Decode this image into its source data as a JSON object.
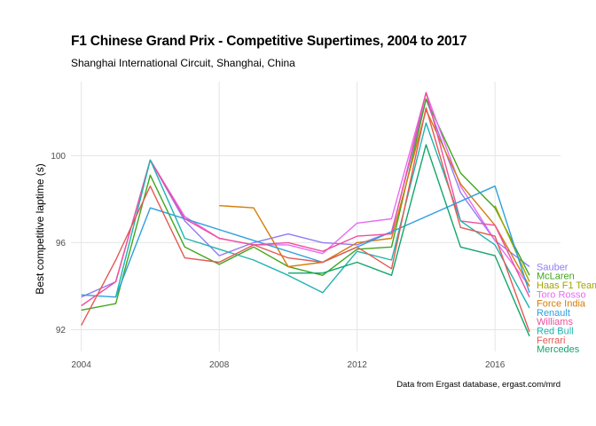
{
  "chart_data": {
    "type": "line",
    "title": "F1 Chinese Grand Prix - Competitive Supertimes, 2004 to 2017",
    "subtitle": "Shanghai International Circuit, Shanghai, China",
    "caption": "Data from Ergast database, ergast.com/mrd",
    "xlabel": "",
    "ylabel": "Best competitive laptime (s)",
    "xlim": [
      2003.7,
      2017.9
    ],
    "ylim": [
      91.0,
      103.4
    ],
    "x_ticks": [
      2004,
      2008,
      2012,
      2016
    ],
    "y_ticks": [
      92,
      96,
      100
    ],
    "grid": true,
    "legend": "direct labels at right end of lines",
    "series": [
      {
        "name": "Sauber",
        "color": "#8f7cf4",
        "x": [
          2004,
          2005,
          2006,
          2007,
          2008,
          2009,
          2010,
          2011,
          2012,
          2013,
          2014,
          2015,
          2016,
          2017
        ],
        "y": [
          93.5,
          94.2,
          99.8,
          97.0,
          95.4,
          96.0,
          96.4,
          96.0,
          95.9,
          96.5,
          102.6,
          98.3,
          96.1,
          94.9
        ]
      },
      {
        "name": "McLaren",
        "color": "#3fa61c",
        "x": [
          2004,
          2005,
          2006,
          2007,
          2008,
          2009,
          2010,
          2011,
          2012,
          2013,
          2014,
          2015,
          2016,
          2017
        ],
        "y": [
          92.9,
          93.2,
          99.1,
          95.8,
          95.0,
          95.8,
          94.9,
          94.5,
          95.7,
          95.8,
          102.6,
          99.2,
          97.6,
          94.5
        ]
      },
      {
        "name": "Haas F1 Team",
        "color": "#a3a500",
        "x": [
          2016,
          2017
        ],
        "y": [
          97.7,
          94.2
        ]
      },
      {
        "name": "Toro Rosso",
        "color": "#e76bf3",
        "x": [
          2006,
          2007,
          2008,
          2009,
          2010,
          2011,
          2012,
          2013,
          2014,
          2015,
          2016,
          2017
        ],
        "y": [
          99.8,
          97.2,
          96.2,
          95.9,
          95.9,
          95.5,
          96.9,
          97.1,
          102.9,
          98.6,
          96.1,
          94.0
        ]
      },
      {
        "name": "Force India",
        "color": "#d47c0a",
        "x": [
          2008,
          2009,
          2010,
          2011,
          2012,
          2013,
          2014,
          2015,
          2016,
          2017
        ],
        "y": [
          97.7,
          97.6,
          94.9,
          95.1,
          96.0,
          96.2,
          102.1,
          98.7,
          96.8,
          94.0
        ]
      },
      {
        "name": "Renault",
        "color": "#2d9fe0",
        "x": [
          2004,
          2005,
          2006,
          2011,
          2016,
          2017
        ],
        "y": [
          93.6,
          93.5,
          97.6,
          95.1,
          98.6,
          93.7
        ]
      },
      {
        "name": "Williams",
        "color": "#ef4f9e",
        "x": [
          2004,
          2005,
          2006,
          2007,
          2008,
          2009,
          2010,
          2011,
          2012,
          2013,
          2014,
          2015,
          2016,
          2017
        ],
        "y": [
          93.1,
          94.2,
          99.8,
          97.1,
          96.2,
          95.9,
          96.0,
          95.6,
          96.3,
          96.4,
          102.9,
          97.0,
          96.8,
          93.5
        ]
      },
      {
        "name": "Red Bull",
        "color": "#1eb4b0",
        "x": [
          2005,
          2006,
          2007,
          2008,
          2009,
          2010,
          2011,
          2012,
          2013,
          2014,
          2015,
          2016,
          2017
        ],
        "y": [
          93.5,
          99.8,
          96.2,
          95.7,
          95.2,
          94.5,
          93.7,
          95.6,
          95.2,
          101.5,
          97.0,
          95.9,
          93.0
        ]
      },
      {
        "name": "Ferrari",
        "color": "#e35a52",
        "x": [
          2004,
          2005,
          2006,
          2007,
          2008,
          2009,
          2010,
          2011,
          2012,
          2013,
          2014,
          2015,
          2016,
          2017
        ],
        "y": [
          92.2,
          95.2,
          98.6,
          95.3,
          95.1,
          95.9,
          95.3,
          95.1,
          95.8,
          94.8,
          102.2,
          96.7,
          96.3,
          91.9
        ]
      },
      {
        "name": "Mercedes",
        "color": "#12a56d",
        "x": [
          2010,
          2011,
          2012,
          2013,
          2014,
          2015,
          2016,
          2017
        ],
        "y": [
          94.6,
          94.6,
          95.1,
          94.5,
          100.5,
          95.8,
          95.4,
          91.7
        ]
      }
    ]
  }
}
